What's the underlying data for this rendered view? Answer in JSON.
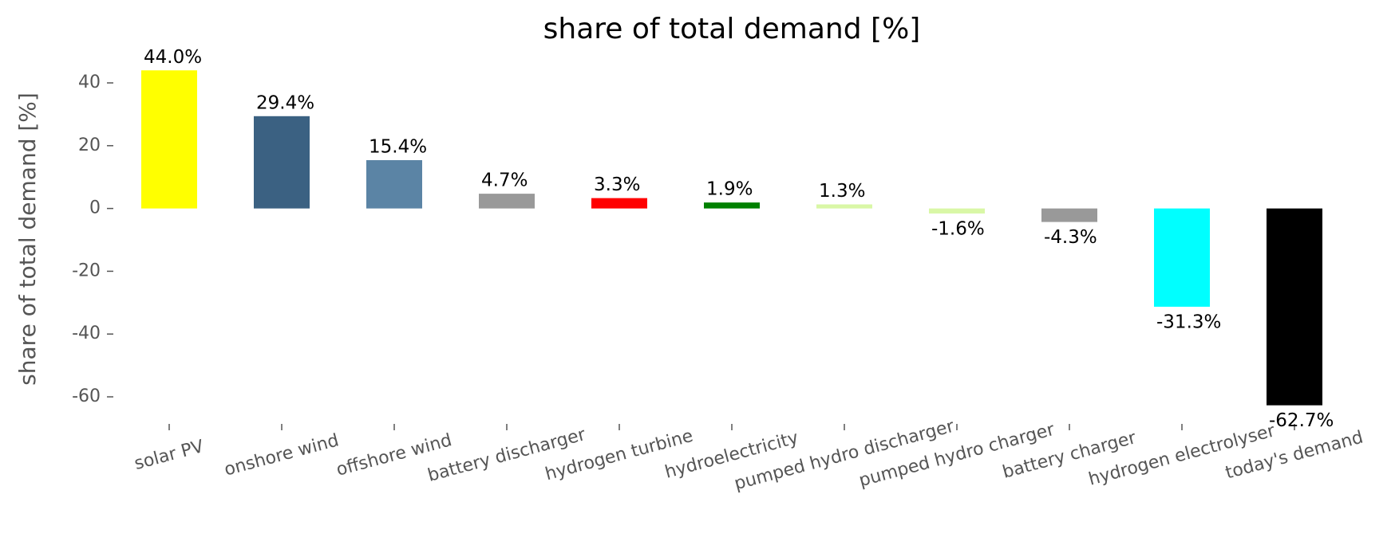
{
  "chart_data": {
    "type": "bar",
    "title": "share of total demand [%]",
    "y_label": "share of total demand [%]",
    "categories": [
      "solar PV",
      "onshore wind",
      "offshore wind",
      "battery discharger",
      "hydrogen turbine",
      "hydroelectricity",
      "pumped hydro discharger",
      "pumped hydro charger",
      "battery charger",
      "hydrogen electrolyser",
      "today's demand"
    ],
    "values": [
      44.0,
      29.4,
      15.4,
      4.7,
      3.3,
      1.9,
      1.3,
      -1.6,
      -4.3,
      -31.3,
      -62.7
    ],
    "value_labels": [
      "44.0%",
      "29.4%",
      "15.4%",
      "4.7%",
      "3.3%",
      "1.9%",
      "1.3%",
      "-1.6%",
      "-4.3%",
      "-31.3%",
      "-62.7%"
    ],
    "colors": [
      "#ffff00",
      "#3b6182",
      "#5b84a5",
      "#999999",
      "#ff0000",
      "#008000",
      "#d9f7a6",
      "#d9f7a6",
      "#999999",
      "#00ffff",
      "#000000"
    ],
    "ylim": [
      -67.1,
      46.1
    ],
    "yticks": [
      -60,
      -40,
      -20,
      0,
      20,
      40
    ]
  }
}
